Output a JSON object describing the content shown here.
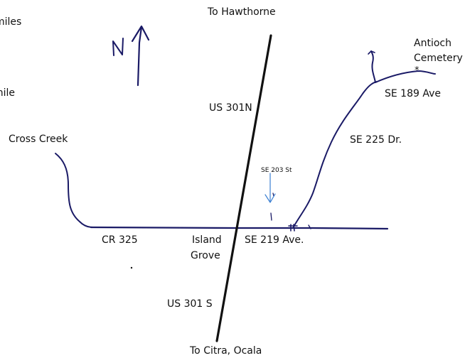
{
  "labels": {
    "to_hawthorne": "To Hawthorne",
    "scale_miles": "miles",
    "scale_mile": "mile",
    "antioch": "Antioch",
    "cemetery": "Cemetery",
    "asterisk": "*",
    "se_189_ave": "SE 189 Ave",
    "us_301n": "US 301N",
    "cross_creek": "Cross Creek",
    "se_225_dr": "SE 225 Dr.",
    "se_203_st": "SE 203 St",
    "cr_325": "CR 325",
    "island": "Island",
    "grove": "Grove",
    "se_219_ave": "SE 219 Ave.",
    "us_301s": "US 301 S",
    "to_citra_ocala": "To Citra, Ocala",
    "north_letter": "N"
  },
  "colors": {
    "road": "#1a1a66",
    "highway": "#111111",
    "arrow_blue": "#3b7fd1",
    "north_arrow": "#1a1a66"
  }
}
